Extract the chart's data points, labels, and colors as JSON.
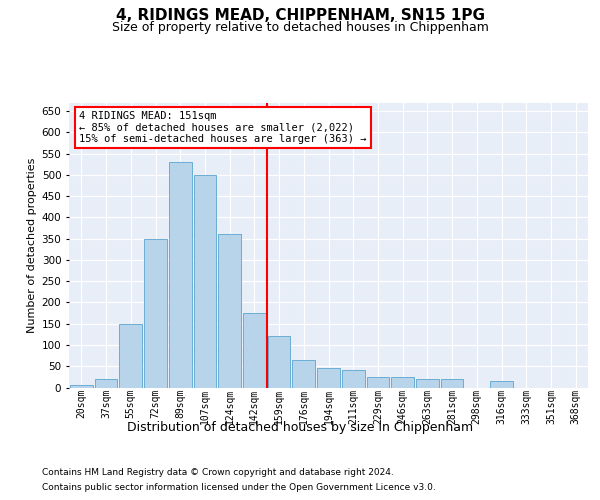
{
  "title1": "4, RIDINGS MEAD, CHIPPENHAM, SN15 1PG",
  "title2": "Size of property relative to detached houses in Chippenham",
  "xlabel": "Distribution of detached houses by size in Chippenham",
  "ylabel": "Number of detached properties",
  "bar_labels": [
    "20sqm",
    "37sqm",
    "55sqm",
    "72sqm",
    "89sqm",
    "107sqm",
    "124sqm",
    "142sqm",
    "159sqm",
    "176sqm",
    "194sqm",
    "211sqm",
    "229sqm",
    "246sqm",
    "263sqm",
    "281sqm",
    "298sqm",
    "316sqm",
    "333sqm",
    "351sqm",
    "368sqm"
  ],
  "bar_values": [
    5,
    20,
    150,
    350,
    530,
    500,
    360,
    175,
    120,
    65,
    45,
    40,
    25,
    25,
    20,
    20,
    0,
    15,
    0,
    0,
    0
  ],
  "bar_color": "#b8d4ea",
  "bar_edge_color": "#6aadd5",
  "red_line_x": 7.5,
  "annotation_line1": "4 RIDINGS MEAD: 151sqm",
  "annotation_line2": "← 85% of detached houses are smaller (2,022)",
  "annotation_line3": "15% of semi-detached houses are larger (363) →",
  "ylim": [
    0,
    670
  ],
  "yticks": [
    0,
    50,
    100,
    150,
    200,
    250,
    300,
    350,
    400,
    450,
    500,
    550,
    600,
    650
  ],
  "footnote1": "Contains HM Land Registry data © Crown copyright and database right 2024.",
  "footnote2": "Contains public sector information licensed under the Open Government Licence v3.0.",
  "bg_color": "#e8eef7",
  "title1_fontsize": 11,
  "title2_fontsize": 9,
  "tick_fontsize": 7,
  "ylabel_fontsize": 8,
  "xlabel_fontsize": 9,
  "annot_fontsize": 7.5,
  "footnote_fontsize": 6.5
}
